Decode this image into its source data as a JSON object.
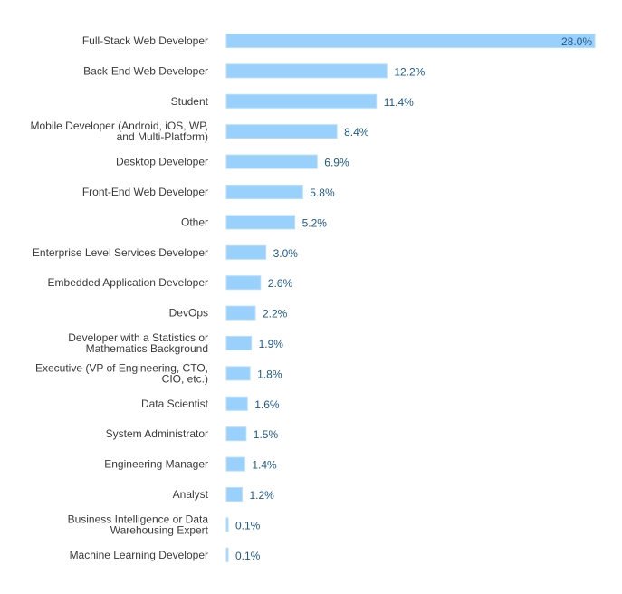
{
  "chart_data": {
    "type": "bar",
    "orientation": "horizontal",
    "title": "",
    "xlabel": "",
    "ylabel": "",
    "xlim": [
      0,
      28
    ],
    "grid": false,
    "categories": [
      "Full-Stack Web Developer",
      "Back-End Web Developer",
      "Student",
      "Mobile Developer (Android, iOS, WP,\nand Multi-Platform)",
      "Desktop Developer",
      "Front-End Web Developer",
      "Other",
      "Enterprise Level Services Developer",
      "Embedded Application Developer",
      "DevOps",
      "Developer with a Statistics or\nMathematics Background",
      "Executive (VP of Engineering, CTO,\nCIO, etc.)",
      "Data Scientist",
      "System Administrator",
      "Engineering Manager",
      "Analyst",
      "Business Intelligence or Data\nWarehousing Expert",
      "Machine Learning Developer"
    ],
    "values": [
      28.0,
      12.2,
      11.4,
      8.4,
      6.9,
      5.8,
      5.2,
      3.0,
      2.6,
      2.2,
      1.9,
      1.8,
      1.6,
      1.5,
      1.4,
      1.2,
      0.1,
      0.1
    ],
    "value_labels": [
      "28.0%",
      "12.2%",
      "11.4%",
      "8.4%",
      "6.9%",
      "5.8%",
      "5.2%",
      "3.0%",
      "2.6%",
      "2.2%",
      "1.9%",
      "1.8%",
      "1.6%",
      "1.5%",
      "1.4%",
      "1.2%",
      "0.1%",
      "0.1%"
    ],
    "colors": {
      "bar": "#99d1fc",
      "label": "#3a3a3a",
      "value": "#1e5a8c"
    }
  }
}
